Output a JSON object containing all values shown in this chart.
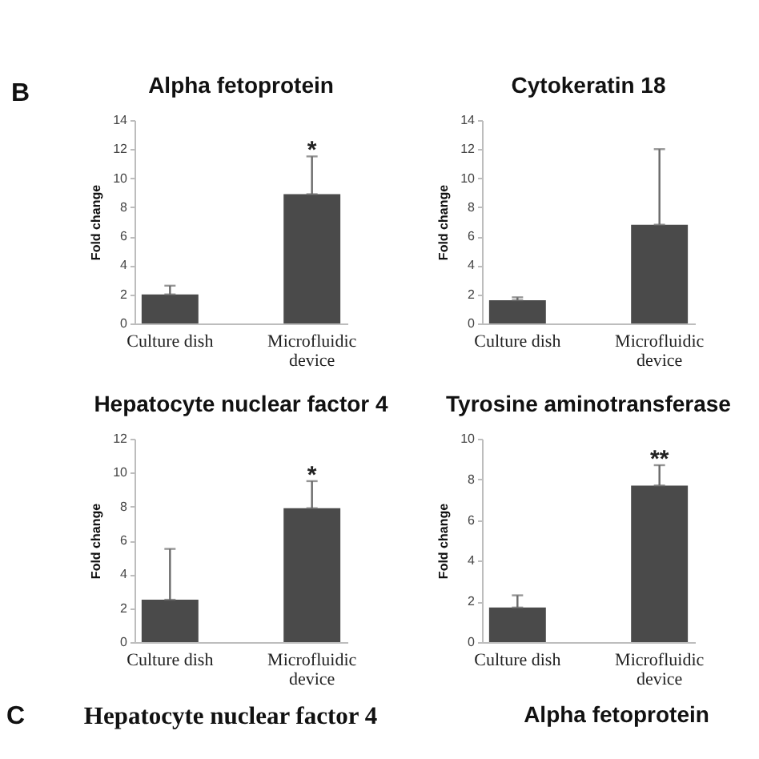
{
  "chart_data": [
    {
      "type": "bar",
      "title": "Alpha fetoprotein",
      "ylabel": "Fold change",
      "categories": [
        "Culture dish",
        "Microfluidic device"
      ],
      "values": [
        2.0,
        8.9
      ],
      "errors": [
        [
          2.0,
          2.6
        ],
        [
          8.9,
          11.5
        ]
      ],
      "color": "#4a4a4a",
      "ylim": [
        0,
        14
      ],
      "yticks": [
        0,
        2,
        4,
        6,
        8,
        10,
        12,
        14
      ],
      "annotations": [
        "B",
        {
          "text": "*",
          "x": "Microfluidic device",
          "y": 11.5
        }
      ]
    },
    {
      "type": "bar",
      "title": "Cytokeratin 18",
      "ylabel": "Fold change",
      "categories": [
        "Culture dish",
        "Microfluidic device"
      ],
      "values": [
        1.6,
        6.8
      ],
      "errors": [
        [
          1.6,
          1.8
        ],
        [
          6.8,
          12.0
        ]
      ],
      "color": "#4a4a4a",
      "ylim": [
        0,
        14
      ],
      "yticks": [
        0,
        2,
        4,
        6,
        8,
        10,
        12,
        14
      ]
    },
    {
      "type": "bar",
      "title": "Hepatocyte nuclear factor 4",
      "ylabel": "Fold change",
      "categories": [
        "Culture dish",
        "Microfluidic device"
      ],
      "values": [
        2.5,
        7.9
      ],
      "errors": [
        [
          2.5,
          5.5
        ],
        [
          7.9,
          9.5
        ]
      ],
      "color": "#4a4a4a",
      "ylim": [
        0,
        12
      ],
      "yticks": [
        0,
        2,
        4,
        6,
        8,
        10,
        12
      ],
      "annotations": [
        {
          "text": "*",
          "x": "Microfluidic device",
          "y": 9.5
        }
      ]
    },
    {
      "type": "bar",
      "title": "Tyrosine aminotransferase",
      "ylabel": "Fold change",
      "categories": [
        "Culture dish",
        "Microfluidic device"
      ],
      "values": [
        1.7,
        7.7
      ],
      "errors": [
        [
          1.7,
          2.3
        ],
        [
          7.7,
          8.7
        ]
      ],
      "color": "#4a4a4a",
      "ylim": [
        0,
        10
      ],
      "yticks": [
        0,
        2,
        4,
        6,
        8,
        10
      ],
      "annotations": [
        {
          "text": "**",
          "x": "Microfluidic device",
          "y": 8.7
        }
      ]
    },
    {
      "type": "other",
      "annotations": [
        "C",
        "Hepatocyte nuclear factor 4",
        "Alpha fetoprotein"
      ]
    }
  ]
}
